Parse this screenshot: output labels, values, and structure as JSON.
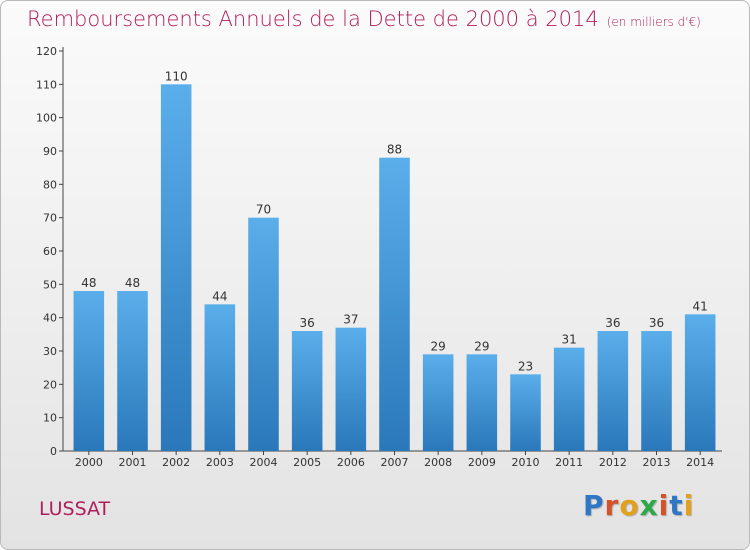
{
  "title": "Remboursements Annuels de la Dette de 2000 à 2014",
  "subtitle": "(en milliers d'€)",
  "commune": "LUSSAT",
  "logo": {
    "text": "Proxiti",
    "colors": [
      "#2f77c4",
      "#d4522a",
      "#e2a11d",
      "#2fa84a",
      "#d4522a",
      "#2f77c4",
      "#e2a11d"
    ]
  },
  "colors": {
    "accent": "#b01e5a",
    "bar_top": "#5aaeea",
    "bar_bottom": "#2a78ba"
  },
  "chart_data": {
    "type": "bar",
    "title": "Remboursements Annuels de la Dette de 2000 à 2014",
    "xlabel": "",
    "ylabel": "",
    "categories": [
      "2000",
      "2001",
      "2002",
      "2003",
      "2004",
      "2005",
      "2006",
      "2007",
      "2008",
      "2009",
      "2010",
      "2011",
      "2012",
      "2013",
      "2014"
    ],
    "values": [
      48,
      48,
      110,
      44,
      70,
      36,
      37,
      88,
      29,
      29,
      23,
      31,
      36,
      36,
      41
    ],
    "ylim": [
      0,
      120
    ],
    "yticks": [
      0,
      10,
      20,
      30,
      40,
      50,
      60,
      70,
      80,
      90,
      100,
      110,
      120
    ],
    "grid": false,
    "legend": "none"
  }
}
